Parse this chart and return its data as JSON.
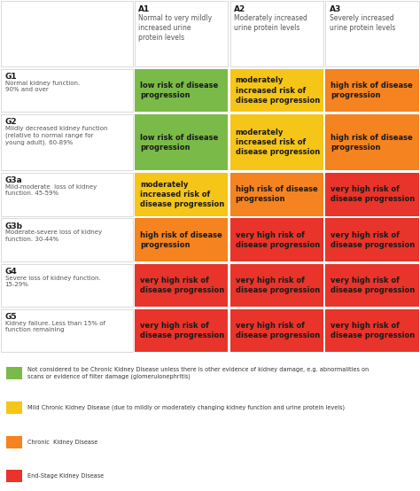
{
  "col_headers": [
    {
      "label": "A1",
      "sub": "Normal to very mildly\nincreased urine\nprotein levels"
    },
    {
      "label": "A2",
      "sub": "Moderately increased\nurine protein levels"
    },
    {
      "label": "A3",
      "sub": "Severely increased\nurine protein levels"
    }
  ],
  "row_headers": [
    {
      "label": "G1",
      "sub": "Normal kidney function.\n90% and over"
    },
    {
      "label": "G2",
      "sub": "Mildly decreased kidney function\n(relative to normal range for\nyoung adult). 60-89%"
    },
    {
      "label": "G3a",
      "sub": "Mild-moderate  loss of kidney\nfunction. 45-59%"
    },
    {
      "label": "G3b",
      "sub": "Moderate-severe loss of kidney\nfunction. 30-44%"
    },
    {
      "label": "G4",
      "sub": "Severe loss of kidney function.\n15-29%"
    },
    {
      "label": "G5",
      "sub": "Kidney failure. Less than 15% of\nfunction remaining"
    }
  ],
  "cells": [
    [
      {
        "text": "low risk of disease\nprogression",
        "color": "#7aba48"
      },
      {
        "text": "moderately\nincreased risk of\ndisease progression",
        "color": "#f5c518"
      },
      {
        "text": "high risk of disease\nprogression",
        "color": "#f48320"
      }
    ],
    [
      {
        "text": "low risk of disease\nprogression",
        "color": "#7aba48"
      },
      {
        "text": "moderately\nincreased risk of\ndisease progression",
        "color": "#f5c518"
      },
      {
        "text": "high risk of disease\nprogression",
        "color": "#f48320"
      }
    ],
    [
      {
        "text": "moderately\nincreased risk of\ndisease progression",
        "color": "#f5c518"
      },
      {
        "text": "high risk of disease\nprogression",
        "color": "#f48320"
      },
      {
        "text": "very high risk of\ndisease progression",
        "color": "#e8342a"
      }
    ],
    [
      {
        "text": "high risk of disease\nprogression",
        "color": "#f48320"
      },
      {
        "text": "very high risk of\ndisease progression",
        "color": "#e8342a"
      },
      {
        "text": "very high risk of\ndisease progression",
        "color": "#e8342a"
      }
    ],
    [
      {
        "text": "very high risk of\ndisease progression",
        "color": "#e8342a"
      },
      {
        "text": "very high risk of\ndisease progression",
        "color": "#e8342a"
      },
      {
        "text": "very high risk of\ndisease progression",
        "color": "#e8342a"
      }
    ],
    [
      {
        "text": "very high risk of\ndisease progression",
        "color": "#e8342a"
      },
      {
        "text": "very high risk of\ndisease progression",
        "color": "#e8342a"
      },
      {
        "text": "very high risk of\ndisease progression",
        "color": "#e8342a"
      }
    ]
  ],
  "legend": [
    {
      "color": "#7aba48",
      "text": "Not considered to be Chronic Kidney Disease unless there is other evidence of kidney damage, e.g. abnormalities on\nscans or evidence of filter damage (glomerulonephritis)"
    },
    {
      "color": "#f5c518",
      "text": "Mild Chronic Kidney Disease (due to mildly or moderately changing kidney function and urine protein levels)"
    },
    {
      "color": "#f48320",
      "text": "Chronic  Kidney Disease"
    },
    {
      "color": "#e8342a",
      "text": "End-Stage Kidney Disease"
    }
  ],
  "bg_color": "#ffffff",
  "cell_text_color": "#1a1a1a",
  "header_text_color": "#1a1a1a",
  "header_sub_color": "#555555",
  "border_color": "#cccccc",
  "header_bg": "#ffffff"
}
